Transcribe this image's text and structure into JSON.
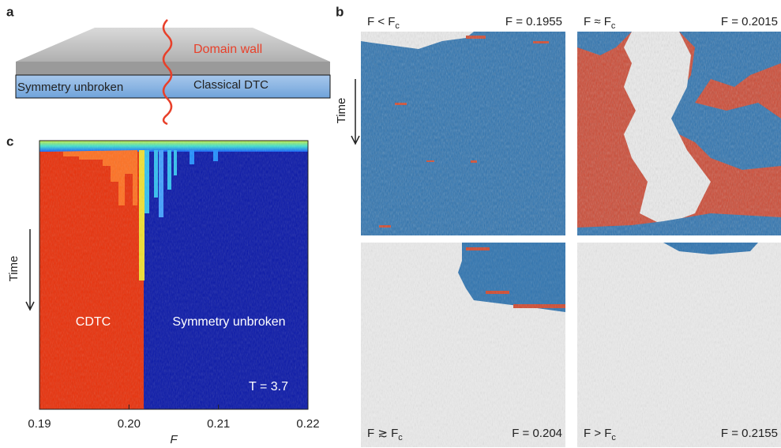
{
  "panel_a": {
    "label": "a",
    "annotation": "Domain wall",
    "left_region": "Symmetry unbroken",
    "right_region": "Classical DTC"
  },
  "panel_b": {
    "label": "b",
    "axis_label": "Time",
    "frames": [
      {
        "condition": "F < F",
        "condition_sub": "c",
        "value_label": "F = 0.1955"
      },
      {
        "condition": "F ≈ F",
        "condition_sub": "c",
        "value_label": "F = 0.2015"
      },
      {
        "condition": "F ≳ F",
        "condition_sub": "c",
        "value_label": "F = 0.204"
      },
      {
        "condition": "F > F",
        "condition_sub": "c",
        "value_label": "F = 0.2155"
      }
    ]
  },
  "panel_c": {
    "label": "c",
    "axis_label_y": "Time",
    "axis_label_x": "F",
    "xticks": [
      "0.19",
      "0.20",
      "0.21",
      "0.22"
    ],
    "left_region": "CDTC",
    "right_region": "Symmetry unbroken",
    "annotation": "T = 3.7"
  }
}
